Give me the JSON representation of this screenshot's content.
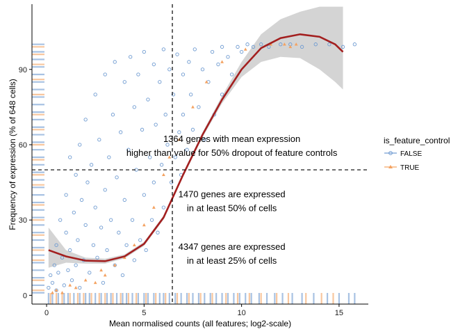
{
  "chart_data": {
    "type": "scatter",
    "xlabel": "Mean normalised counts (all features; log2-scale)",
    "ylabel": "Frequency of expression (% of 648 cells)",
    "xlim": [
      -0.75,
      16.5
    ],
    "ylim": [
      -3.5,
      116
    ],
    "x_ticks": [
      0,
      5,
      10,
      15
    ],
    "y_ticks": [
      0,
      30,
      60,
      90
    ],
    "grid": false,
    "reference_lines": {
      "vertical_x": 6.45,
      "horizontal_y": 50
    },
    "legend": {
      "title": "is_feature_control",
      "position": "right",
      "entries": [
        {
          "label": "FALSE",
          "color": "#6f9bd1"
        },
        {
          "label": "TRUE",
          "color": "#f4a261"
        }
      ]
    },
    "annotations": [
      {
        "lines": [
          "1364 genes with mean expression",
          "higher than value for 50% dropout of feature controls"
        ],
        "x": 9.5,
        "y": 60
      },
      {
        "lines": [
          "1470 genes are expressed",
          "in at least 50% of cells"
        ],
        "x": 9.5,
        "y": 38
      },
      {
        "lines": [
          "4347 genes are expressed",
          "in at least 25% of cells"
        ],
        "x": 9.5,
        "y": 17
      }
    ],
    "series": [
      {
        "name": "FALSE",
        "color": "#6f9bd1",
        "points": [
          [
            0.1,
            3
          ],
          [
            0.2,
            8
          ],
          [
            0.3,
            5
          ],
          [
            0.4,
            12
          ],
          [
            0.5,
            2
          ],
          [
            0.5,
            20
          ],
          [
            0.6,
            9
          ],
          [
            0.7,
            30
          ],
          [
            0.8,
            15
          ],
          [
            0.9,
            4
          ],
          [
            1.0,
            25
          ],
          [
            1.0,
            40
          ],
          [
            1.1,
            10
          ],
          [
            1.2,
            55
          ],
          [
            1.2,
            18
          ],
          [
            1.3,
            6
          ],
          [
            1.4,
            33
          ],
          [
            1.5,
            48
          ],
          [
            1.5,
            12
          ],
          [
            1.6,
            22
          ],
          [
            1.7,
            60
          ],
          [
            1.7,
            3
          ],
          [
            1.8,
            38
          ],
          [
            1.9,
            14
          ],
          [
            2.0,
            70
          ],
          [
            2.0,
            28
          ],
          [
            2.1,
            45
          ],
          [
            2.2,
            9
          ],
          [
            2.3,
            52
          ],
          [
            2.4,
            20
          ],
          [
            2.5,
            80
          ],
          [
            2.5,
            35
          ],
          [
            2.6,
            15
          ],
          [
            2.7,
            62
          ],
          [
            2.8,
            27
          ],
          [
            2.9,
            5
          ],
          [
            3.0,
            88
          ],
          [
            3.0,
            42
          ],
          [
            3.1,
            18
          ],
          [
            3.2,
            55
          ],
          [
            3.3,
            30
          ],
          [
            3.4,
            72
          ],
          [
            3.5,
            12
          ],
          [
            3.5,
            93
          ],
          [
            3.6,
            47
          ],
          [
            3.7,
            25
          ],
          [
            3.8,
            65
          ],
          [
            3.9,
            8
          ],
          [
            4.0,
            85
          ],
          [
            4.0,
            38
          ],
          [
            4.1,
            20
          ],
          [
            4.2,
            58
          ],
          [
            4.3,
            95
          ],
          [
            4.4,
            30
          ],
          [
            4.5,
            75
          ],
          [
            4.5,
            14
          ],
          [
            4.6,
            50
          ],
          [
            4.7,
            88
          ],
          [
            4.8,
            22
          ],
          [
            4.9,
            66
          ],
          [
            5.0,
            97
          ],
          [
            5.0,
            40
          ],
          [
            5.1,
            18
          ],
          [
            5.2,
            78
          ],
          [
            5.3,
            55
          ],
          [
            5.4,
            30
          ],
          [
            5.5,
            92
          ],
          [
            5.5,
            45
          ],
          [
            5.6,
            68
          ],
          [
            5.7,
            25
          ],
          [
            5.8,
            85
          ],
          [
            5.9,
            52
          ],
          [
            6.0,
            98
          ],
          [
            6.0,
            35
          ],
          [
            6.1,
            72
          ],
          [
            6.2,
            60
          ],
          [
            6.3,
            90
          ],
          [
            6.4,
            45
          ],
          [
            6.5,
            80
          ],
          [
            6.6,
            55
          ],
          [
            6.7,
            96
          ],
          [
            6.8,
            65
          ],
          [
            6.9,
            48
          ],
          [
            7.0,
            88
          ],
          [
            7.0,
            72
          ],
          [
            7.2,
            58
          ],
          [
            7.3,
            93
          ],
          [
            7.4,
            80
          ],
          [
            7.5,
            66
          ],
          [
            7.6,
            98
          ],
          [
            7.8,
            75
          ],
          [
            8.0,
            90
          ],
          [
            8.1,
            62
          ],
          [
            8.3,
            85
          ],
          [
            8.5,
            97
          ],
          [
            8.6,
            72
          ],
          [
            8.8,
            92
          ],
          [
            9.0,
            99
          ],
          [
            9.0,
            80
          ],
          [
            9.3,
            95
          ],
          [
            9.5,
            88
          ],
          [
            9.8,
            99
          ],
          [
            10.0,
            97
          ],
          [
            10.3,
            100
          ],
          [
            10.6,
            99
          ],
          [
            11.0,
            100
          ],
          [
            11.4,
            99
          ],
          [
            12.0,
            100
          ],
          [
            12.5,
            100
          ],
          [
            13.1,
            99
          ],
          [
            13.8,
            100
          ],
          [
            14.5,
            100
          ],
          [
            15.2,
            99
          ],
          [
            15.8,
            100
          ]
        ]
      },
      {
        "name": "TRUE",
        "color": "#f4a261",
        "points": [
          [
            0.3,
            1
          ],
          [
            0.5,
            2
          ],
          [
            0.8,
            1
          ],
          [
            1.2,
            4
          ],
          [
            1.5,
            3
          ],
          [
            2.0,
            6
          ],
          [
            2.5,
            5
          ],
          [
            2.8,
            10
          ],
          [
            3.0,
            8
          ],
          [
            3.5,
            12
          ],
          [
            4.0,
            15
          ],
          [
            4.5,
            20
          ],
          [
            5.0,
            28
          ],
          [
            5.5,
            35
          ],
          [
            6.0,
            48
          ],
          [
            6.3,
            55
          ],
          [
            6.8,
            62
          ],
          [
            7.5,
            75
          ],
          [
            8.2,
            85
          ],
          [
            9.0,
            93
          ],
          [
            10.2,
            98
          ],
          [
            11.5,
            100
          ],
          [
            12.2,
            100
          ],
          [
            12.5,
            99
          ],
          [
            12.8,
            100
          ]
        ]
      }
    ],
    "loess_fit": {
      "color": "#a31f1f",
      "points": [
        [
          0.1,
          18
        ],
        [
          1,
          15.5
        ],
        [
          2,
          13.8
        ],
        [
          3,
          13.6
        ],
        [
          4,
          15.5
        ],
        [
          5,
          20.5
        ],
        [
          6,
          31
        ],
        [
          7,
          48
        ],
        [
          8,
          64
        ],
        [
          9,
          78
        ],
        [
          10,
          90
        ],
        [
          11,
          98.5
        ],
        [
          12,
          102.5
        ],
        [
          13,
          104
        ],
        [
          14,
          103
        ],
        [
          14.8,
          100
        ],
        [
          15.2,
          97
        ]
      ],
      "ci_upper": [
        [
          0.1,
          27
        ],
        [
          1,
          18
        ],
        [
          2,
          15
        ],
        [
          3,
          14.6
        ],
        [
          4,
          16.3
        ],
        [
          5,
          21.3
        ],
        [
          6,
          31.8
        ],
        [
          7,
          48.8
        ],
        [
          8,
          65
        ],
        [
          9,
          79.5
        ],
        [
          10,
          93
        ],
        [
          11,
          104
        ],
        [
          12,
          110
        ],
        [
          13,
          113
        ],
        [
          14,
          115
        ],
        [
          14.8,
          115
        ],
        [
          15.2,
          115
        ]
      ],
      "ci_lower": [
        [
          0.1,
          11
        ],
        [
          1,
          13
        ],
        [
          2,
          12.6
        ],
        [
          3,
          12.6
        ],
        [
          4,
          14.7
        ],
        [
          5,
          19.7
        ],
        [
          6,
          30.2
        ],
        [
          7,
          47.2
        ],
        [
          8,
          63
        ],
        [
          9,
          76.5
        ],
        [
          10,
          87
        ],
        [
          11,
          93
        ],
        [
          12,
          95
        ],
        [
          13,
          94.5
        ],
        [
          14,
          90
        ],
        [
          14.8,
          85
        ],
        [
          15.2,
          82
        ]
      ]
    },
    "rug": {
      "x_positions_false": [
        0.1,
        0.3,
        0.6,
        0.9,
        1.1,
        1.4,
        1.7,
        2.0,
        2.2,
        2.5,
        2.8,
        3.1,
        3.3,
        3.6,
        3.9,
        4.1,
        4.4,
        4.7,
        5.0,
        5.2,
        5.5,
        5.8,
        6.0,
        6.3,
        6.6,
        6.9,
        7.2,
        7.5,
        7.8,
        8.1,
        8.4,
        8.7,
        9.0,
        9.3,
        9.6,
        9.9,
        10.2,
        10.5,
        10.9,
        11.3,
        11.7,
        12.1,
        12.6,
        13.1,
        13.7,
        14.4,
        15.0,
        15.5,
        15.8
      ],
      "x_positions_true": [
        0.2,
        0.5,
        0.8,
        1.2,
        1.6,
        1.9,
        2.3,
        2.7,
        3.0,
        3.4,
        3.8,
        4.2,
        4.6,
        5.1,
        5.6,
        6.1,
        6.7,
        7.3,
        7.9,
        8.5,
        9.2,
        9.8,
        10.4,
        11.0,
        11.8,
        12.4,
        13.3,
        14.1,
        14.7
      ],
      "y_positions_false": [
        1,
        4,
        7,
        10,
        13,
        16,
        19,
        22,
        25,
        28,
        31,
        34,
        37,
        40,
        43,
        46,
        49,
        52,
        55,
        58,
        61,
        64,
        67,
        70,
        73,
        76,
        79,
        82,
        85,
        88,
        91,
        94,
        97,
        100
      ],
      "y_positions_true": [
        2,
        6,
        14,
        18,
        24,
        30,
        36,
        44,
        48,
        54,
        60,
        66,
        72,
        80,
        86,
        92,
        96,
        99
      ]
    }
  }
}
